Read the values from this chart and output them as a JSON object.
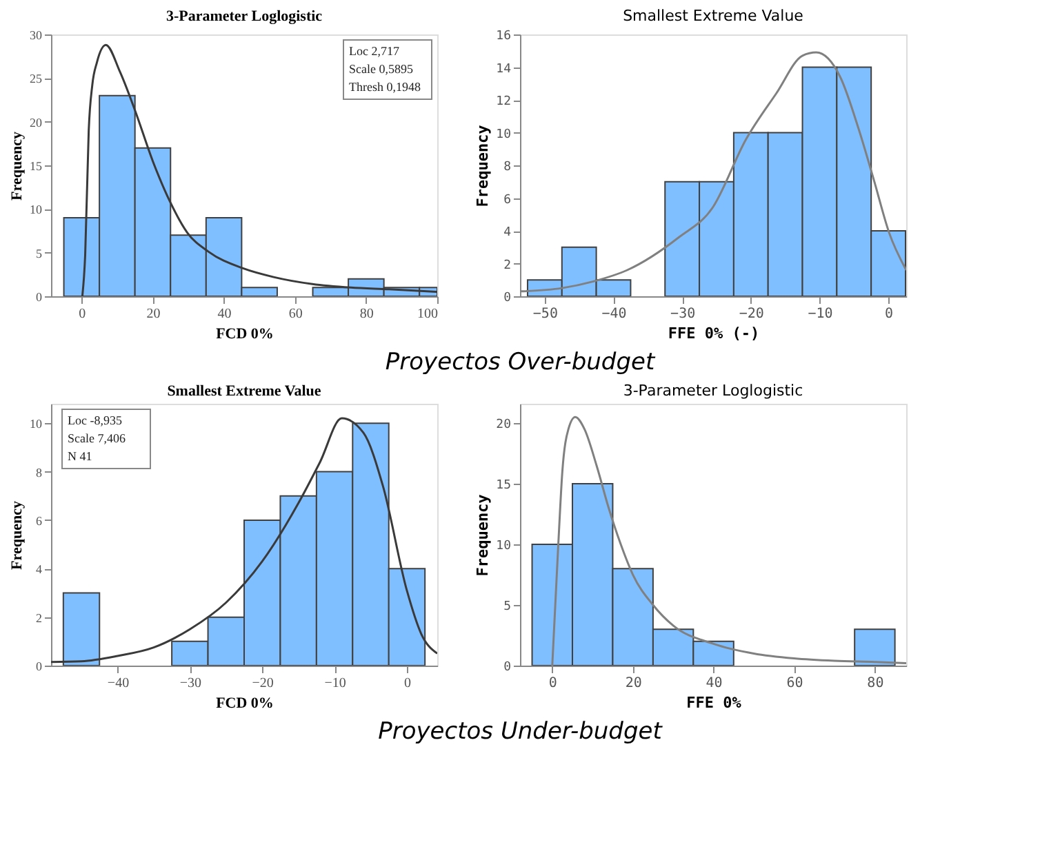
{
  "chart_data": [
    {
      "type": "histogram",
      "title": "3-Parameter Loglogistic",
      "xlabel": "FCD 0%",
      "ylabel": "Frequency",
      "bins": [
        -5,
        5,
        15,
        25,
        35,
        45,
        55,
        65,
        75,
        85,
        95,
        100
      ],
      "values": [
        9,
        23,
        17,
        7,
        9,
        1,
        0,
        1,
        2,
        1,
        1
      ],
      "color": "#80bfff",
      "xlim": [
        -8.6,
        100
      ],
      "ylim": [
        0,
        30
      ],
      "xticks": [
        0,
        20,
        40,
        60,
        80,
        100
      ],
      "yticks": [
        0,
        5,
        10,
        15,
        20,
        25,
        30
      ],
      "grid": false,
      "series": [
        {
          "type": "line",
          "color": "#3a3a3a",
          "x": [
            0.2,
            1,
            2,
            3,
            4.3,
            6.8,
            10.8,
            15.1,
            20,
            24.9,
            29.7,
            35.7,
            45.4,
            54,
            64.9,
            75.7,
            86.5,
            100
          ],
          "values": [
            0,
            4.7,
            19,
            24.2,
            26.8,
            28.8,
            25.7,
            21.2,
            15.5,
            10.8,
            7.3,
            5.1,
            3.2,
            2.2,
            1.4,
            1.0,
            0.8,
            0.5
          ]
        }
      ],
      "annotations": [
        "Loc 2,717",
        "Scale 0,5895",
        "Thresh 0,1948",
        "Proyectos Over-budget"
      ]
    },
    {
      "type": "histogram",
      "title": "Smallest Extreme Value",
      "xlabel": "FFE 0% (-)",
      "ylabel": "Frequency",
      "bins": [
        -52.5,
        -47.5,
        -42.5,
        -37.5,
        -32.5,
        -27.5,
        -22.5,
        -17.5,
        -12.5,
        -7.5,
        -2.5,
        2.5
      ],
      "values": [
        1,
        3,
        1,
        0,
        7,
        7,
        10,
        10,
        14,
        14,
        4
      ],
      "color": "#80bfff",
      "xlim": [
        -53.6,
        2.6
      ],
      "ylim": [
        0,
        16
      ],
      "xticks": [
        -50,
        -40,
        -30,
        -20,
        -10,
        0
      ],
      "yticks": [
        0,
        2,
        4,
        6,
        8,
        10,
        12,
        14,
        16
      ],
      "grid": false,
      "series": [
        {
          "type": "line",
          "color": "#808080",
          "x": [
            -53.6,
            -47.5,
            -43,
            -38,
            -30.5,
            -25.6,
            -20.7,
            -16.3,
            -12.5,
            -10.5,
            -7,
            -4.3,
            -2.1,
            0.1,
            2.6
          ],
          "values": [
            0.3,
            0.5,
            0.9,
            1.6,
            3.6,
            5.4,
            9.6,
            12.4,
            14.7,
            14.9,
            13.4,
            10.2,
            7.1,
            3.9,
            1.6
          ]
        }
      ]
    },
    {
      "type": "histogram",
      "title": "Smallest Extreme Value",
      "xlabel": "FCD 0%",
      "ylabel": "Frequency",
      "bins": [
        -47.5,
        -42.5,
        -37.5,
        -32.5,
        -27.5,
        -22.5,
        -17.5,
        -12.5,
        -7.5,
        -2.5,
        2.5
      ],
      "values": [
        3,
        0,
        0,
        1,
        2,
        6,
        7,
        8,
        10,
        4
      ],
      "color": "#80bfff",
      "xlim": [
        -49.2,
        4.2
      ],
      "ylim": [
        0,
        10.8
      ],
      "xticks": [
        -40,
        -30,
        -20,
        -10,
        0
      ],
      "yticks": [
        0,
        2,
        4,
        6,
        8,
        10
      ],
      "grid": false,
      "series": [
        {
          "type": "line",
          "color": "#3a3a3a",
          "x": [
            -49.2,
            -45,
            -40,
            -35,
            -30,
            -25,
            -20,
            -15,
            -12,
            -9,
            -6,
            -3.3,
            0,
            2,
            4.2
          ],
          "values": [
            0.15,
            0.18,
            0.4,
            0.75,
            1.5,
            2.6,
            4.3,
            6.7,
            8.4,
            10.2,
            9.6,
            7.4,
            3.1,
            1.3,
            0.5
          ]
        }
      ],
      "annotations": [
        "Loc -8,935",
        "Scale 7,406",
        "N 41",
        "Proyectos Under-budget"
      ]
    },
    {
      "type": "histogram",
      "title": "3-Parameter Loglogistic",
      "xlabel": "FFE   0%",
      "ylabel": "Frequency",
      "bins": [
        -5,
        5,
        15,
        25,
        35,
        45,
        55,
        65,
        75,
        85
      ],
      "values": [
        10,
        15,
        8,
        3,
        2,
        0,
        0,
        0,
        3
      ],
      "color": "#80bfff",
      "xlim": [
        -8,
        87.8
      ],
      "ylim": [
        0,
        21.6
      ],
      "xticks": [
        0,
        20,
        40,
        60,
        80
      ],
      "yticks": [
        0,
        5,
        10,
        15,
        20
      ],
      "grid": false,
      "series": [
        {
          "type": "line",
          "color": "#808080",
          "x": [
            0,
            1.5,
            2.5,
            4,
            5.7,
            8,
            11,
            14,
            17,
            20,
            25,
            30,
            40,
            50,
            60,
            70,
            80,
            87.8
          ],
          "values": [
            0,
            10,
            16,
            19.5,
            20.5,
            19.5,
            16.5,
            13,
            10,
            7.5,
            5,
            3.3,
            1.8,
            1,
            0.6,
            0.4,
            0.3,
            0.2
          ]
        }
      ]
    }
  ]
}
